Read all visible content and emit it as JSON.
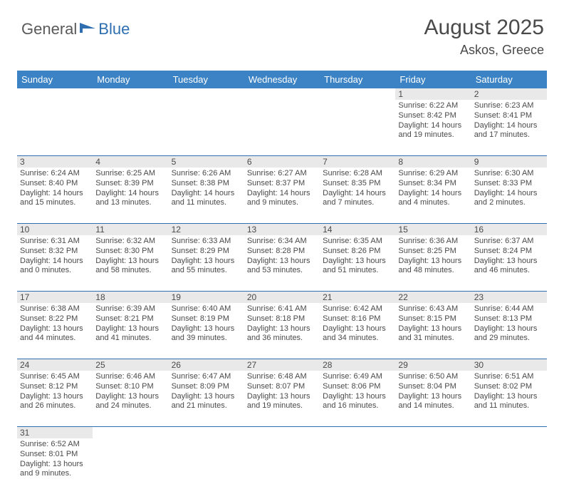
{
  "logo": {
    "text1": "General",
    "text2": "Blue"
  },
  "title": "August 2025",
  "location": "Askos, Greece",
  "colors": {
    "header_bg": "#3b83c5",
    "daynum_bg": "#e9e9e9",
    "row_border": "#2f6fb0",
    "text": "#4a4a4a",
    "logo_blue": "#2f6fb0"
  },
  "day_headers": [
    "Sunday",
    "Monday",
    "Tuesday",
    "Wednesday",
    "Thursday",
    "Friday",
    "Saturday"
  ],
  "weeks": [
    {
      "nums": [
        "",
        "",
        "",
        "",
        "",
        "1",
        "2"
      ],
      "cells": [
        null,
        null,
        null,
        null,
        null,
        {
          "sunrise": "Sunrise: 6:22 AM",
          "sunset": "Sunset: 8:42 PM",
          "daylight": "Daylight: 14 hours and 19 minutes."
        },
        {
          "sunrise": "Sunrise: 6:23 AM",
          "sunset": "Sunset: 8:41 PM",
          "daylight": "Daylight: 14 hours and 17 minutes."
        }
      ]
    },
    {
      "nums": [
        "3",
        "4",
        "5",
        "6",
        "7",
        "8",
        "9"
      ],
      "cells": [
        {
          "sunrise": "Sunrise: 6:24 AM",
          "sunset": "Sunset: 8:40 PM",
          "daylight": "Daylight: 14 hours and 15 minutes."
        },
        {
          "sunrise": "Sunrise: 6:25 AM",
          "sunset": "Sunset: 8:39 PM",
          "daylight": "Daylight: 14 hours and 13 minutes."
        },
        {
          "sunrise": "Sunrise: 6:26 AM",
          "sunset": "Sunset: 8:38 PM",
          "daylight": "Daylight: 14 hours and 11 minutes."
        },
        {
          "sunrise": "Sunrise: 6:27 AM",
          "sunset": "Sunset: 8:37 PM",
          "daylight": "Daylight: 14 hours and 9 minutes."
        },
        {
          "sunrise": "Sunrise: 6:28 AM",
          "sunset": "Sunset: 8:35 PM",
          "daylight": "Daylight: 14 hours and 7 minutes."
        },
        {
          "sunrise": "Sunrise: 6:29 AM",
          "sunset": "Sunset: 8:34 PM",
          "daylight": "Daylight: 14 hours and 4 minutes."
        },
        {
          "sunrise": "Sunrise: 6:30 AM",
          "sunset": "Sunset: 8:33 PM",
          "daylight": "Daylight: 14 hours and 2 minutes."
        }
      ]
    },
    {
      "nums": [
        "10",
        "11",
        "12",
        "13",
        "14",
        "15",
        "16"
      ],
      "cells": [
        {
          "sunrise": "Sunrise: 6:31 AM",
          "sunset": "Sunset: 8:32 PM",
          "daylight": "Daylight: 14 hours and 0 minutes."
        },
        {
          "sunrise": "Sunrise: 6:32 AM",
          "sunset": "Sunset: 8:30 PM",
          "daylight": "Daylight: 13 hours and 58 minutes."
        },
        {
          "sunrise": "Sunrise: 6:33 AM",
          "sunset": "Sunset: 8:29 PM",
          "daylight": "Daylight: 13 hours and 55 minutes."
        },
        {
          "sunrise": "Sunrise: 6:34 AM",
          "sunset": "Sunset: 8:28 PM",
          "daylight": "Daylight: 13 hours and 53 minutes."
        },
        {
          "sunrise": "Sunrise: 6:35 AM",
          "sunset": "Sunset: 8:26 PM",
          "daylight": "Daylight: 13 hours and 51 minutes."
        },
        {
          "sunrise": "Sunrise: 6:36 AM",
          "sunset": "Sunset: 8:25 PM",
          "daylight": "Daylight: 13 hours and 48 minutes."
        },
        {
          "sunrise": "Sunrise: 6:37 AM",
          "sunset": "Sunset: 8:24 PM",
          "daylight": "Daylight: 13 hours and 46 minutes."
        }
      ]
    },
    {
      "nums": [
        "17",
        "18",
        "19",
        "20",
        "21",
        "22",
        "23"
      ],
      "cells": [
        {
          "sunrise": "Sunrise: 6:38 AM",
          "sunset": "Sunset: 8:22 PM",
          "daylight": "Daylight: 13 hours and 44 minutes."
        },
        {
          "sunrise": "Sunrise: 6:39 AM",
          "sunset": "Sunset: 8:21 PM",
          "daylight": "Daylight: 13 hours and 41 minutes."
        },
        {
          "sunrise": "Sunrise: 6:40 AM",
          "sunset": "Sunset: 8:19 PM",
          "daylight": "Daylight: 13 hours and 39 minutes."
        },
        {
          "sunrise": "Sunrise: 6:41 AM",
          "sunset": "Sunset: 8:18 PM",
          "daylight": "Daylight: 13 hours and 36 minutes."
        },
        {
          "sunrise": "Sunrise: 6:42 AM",
          "sunset": "Sunset: 8:16 PM",
          "daylight": "Daylight: 13 hours and 34 minutes."
        },
        {
          "sunrise": "Sunrise: 6:43 AM",
          "sunset": "Sunset: 8:15 PM",
          "daylight": "Daylight: 13 hours and 31 minutes."
        },
        {
          "sunrise": "Sunrise: 6:44 AM",
          "sunset": "Sunset: 8:13 PM",
          "daylight": "Daylight: 13 hours and 29 minutes."
        }
      ]
    },
    {
      "nums": [
        "24",
        "25",
        "26",
        "27",
        "28",
        "29",
        "30"
      ],
      "cells": [
        {
          "sunrise": "Sunrise: 6:45 AM",
          "sunset": "Sunset: 8:12 PM",
          "daylight": "Daylight: 13 hours and 26 minutes."
        },
        {
          "sunrise": "Sunrise: 6:46 AM",
          "sunset": "Sunset: 8:10 PM",
          "daylight": "Daylight: 13 hours and 24 minutes."
        },
        {
          "sunrise": "Sunrise: 6:47 AM",
          "sunset": "Sunset: 8:09 PM",
          "daylight": "Daylight: 13 hours and 21 minutes."
        },
        {
          "sunrise": "Sunrise: 6:48 AM",
          "sunset": "Sunset: 8:07 PM",
          "daylight": "Daylight: 13 hours and 19 minutes."
        },
        {
          "sunrise": "Sunrise: 6:49 AM",
          "sunset": "Sunset: 8:06 PM",
          "daylight": "Daylight: 13 hours and 16 minutes."
        },
        {
          "sunrise": "Sunrise: 6:50 AM",
          "sunset": "Sunset: 8:04 PM",
          "daylight": "Daylight: 13 hours and 14 minutes."
        },
        {
          "sunrise": "Sunrise: 6:51 AM",
          "sunset": "Sunset: 8:02 PM",
          "daylight": "Daylight: 13 hours and 11 minutes."
        }
      ]
    },
    {
      "nums": [
        "31",
        "",
        "",
        "",
        "",
        "",
        ""
      ],
      "cells": [
        {
          "sunrise": "Sunrise: 6:52 AM",
          "sunset": "Sunset: 8:01 PM",
          "daylight": "Daylight: 13 hours and 9 minutes."
        },
        null,
        null,
        null,
        null,
        null,
        null
      ]
    }
  ]
}
